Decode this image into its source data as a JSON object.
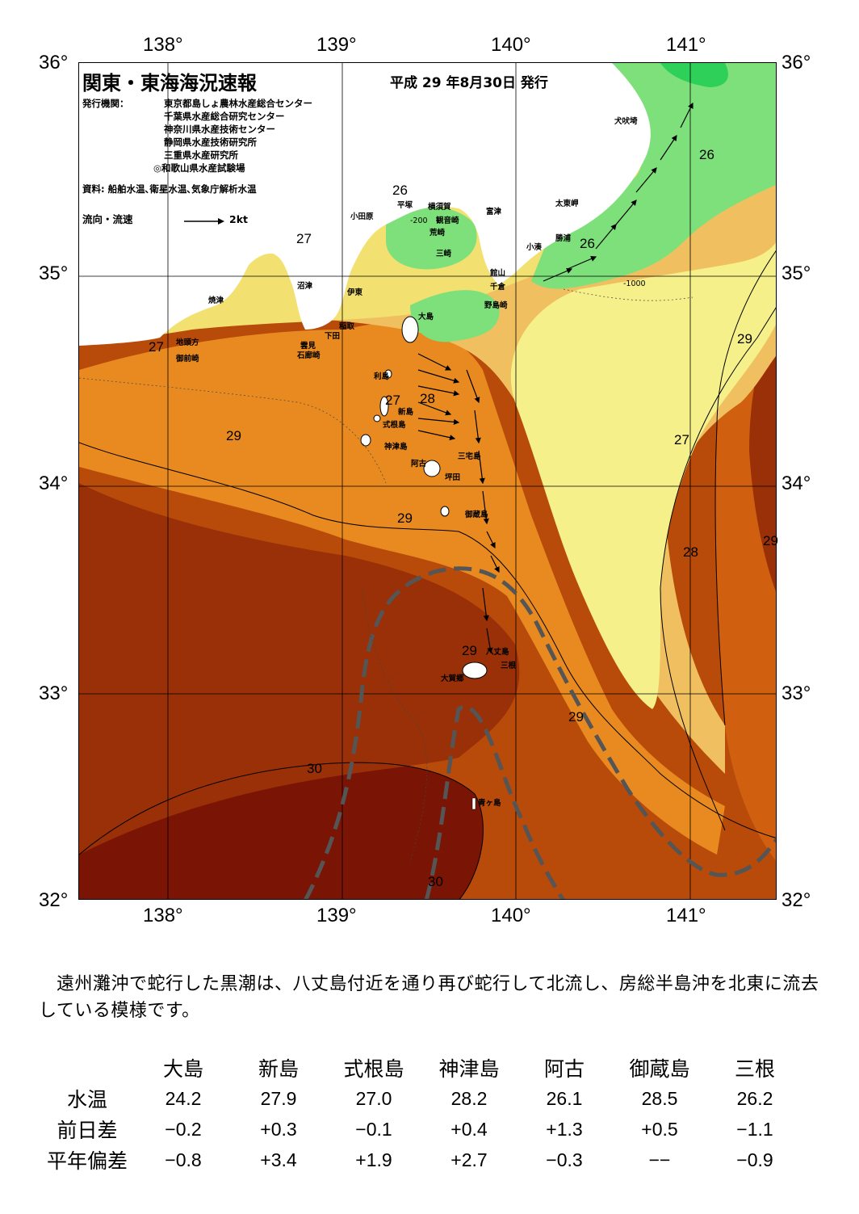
{
  "map": {
    "title": "関東・東海海況速報",
    "issue_date": "平成 29 年8月30日 発行",
    "publisher_label": "発行機関：",
    "publishers": [
      "東京都島しょ農林水産総合センター",
      "千葉県水産総合研究センター",
      "神奈川県水産技術センター",
      "静岡県水産技術研究所",
      "三重県水産研究所",
      "◎和歌山県水産試験場"
    ],
    "sources": "資料: 船舶水温､衛星水温､気象庁解析水温",
    "legend_label": "流向・流速",
    "legend_scale": "2kt",
    "lon_labels": [
      "138°",
      "139°",
      "140°",
      "141°"
    ],
    "lat_labels": [
      "36°",
      "35°",
      "34°",
      "33°",
      "32°"
    ],
    "isotherm_labels": [
      "26",
      "26",
      "26",
      "27",
      "27",
      "27",
      "27",
      "28",
      "28",
      "29",
      "29",
      "29",
      "29",
      "29",
      "29",
      "30",
      "30"
    ],
    "depth_labels": [
      "-200",
      "-1000"
    ],
    "place_names": [
      "犬吠埼",
      "太東岬",
      "勝浦",
      "小湊",
      "館山",
      "千倉",
      "野島崎",
      "富津",
      "横須賀",
      "観音崎",
      "荒崎",
      "三崎",
      "平塚",
      "小田原",
      "沼津",
      "伊東",
      "焼津",
      "地頭方",
      "御前崎",
      "稲取",
      "下田",
      "雲見",
      "石廊崎",
      "大島",
      "利島",
      "新島",
      "式根島",
      "神津島",
      "三宅島",
      "阿古",
      "坪田",
      "御蔵島",
      "八丈島",
      "三根",
      "大賀郷",
      "青ヶ島"
    ],
    "kuroshio_axis": "dashed-gray",
    "colors": {
      "cold_green": "#2fd05a",
      "green": "#7ee07a",
      "yellow_green": "#c8e88a",
      "pale_yellow": "#f5f08a",
      "yellow": "#f2e070",
      "light_orange": "#f0c060",
      "orange": "#e88a20",
      "dark_orange": "#d06010",
      "rust": "#b84a0a",
      "brown": "#9a3008",
      "dark_red": "#7a1404",
      "land": "#ffffff"
    }
  },
  "description": "遠州灘沖で蛇行した黒潮は、八丈島付近を通り再び蛇行して北流し、房総半島沖を北東に流去している模様です。",
  "table": {
    "stations": [
      "大島",
      "新島",
      "式根島",
      "神津島",
      "阿古",
      "御蔵島",
      "三根"
    ],
    "rows": [
      {
        "label": "水温",
        "values": [
          "24.2",
          "27.9",
          "27.0",
          "28.2",
          "26.1",
          "28.5",
          "26.2"
        ]
      },
      {
        "label": "前日差",
        "values": [
          "−0.2",
          "+0.3",
          "−0.1",
          "+0.4",
          "+1.3",
          "+0.5",
          "−1.1"
        ]
      },
      {
        "label": "平年偏差",
        "values": [
          "−0.8",
          "+3.4",
          "+1.9",
          "+2.7",
          "−0.3",
          "−−",
          "−0.9"
        ]
      }
    ]
  }
}
